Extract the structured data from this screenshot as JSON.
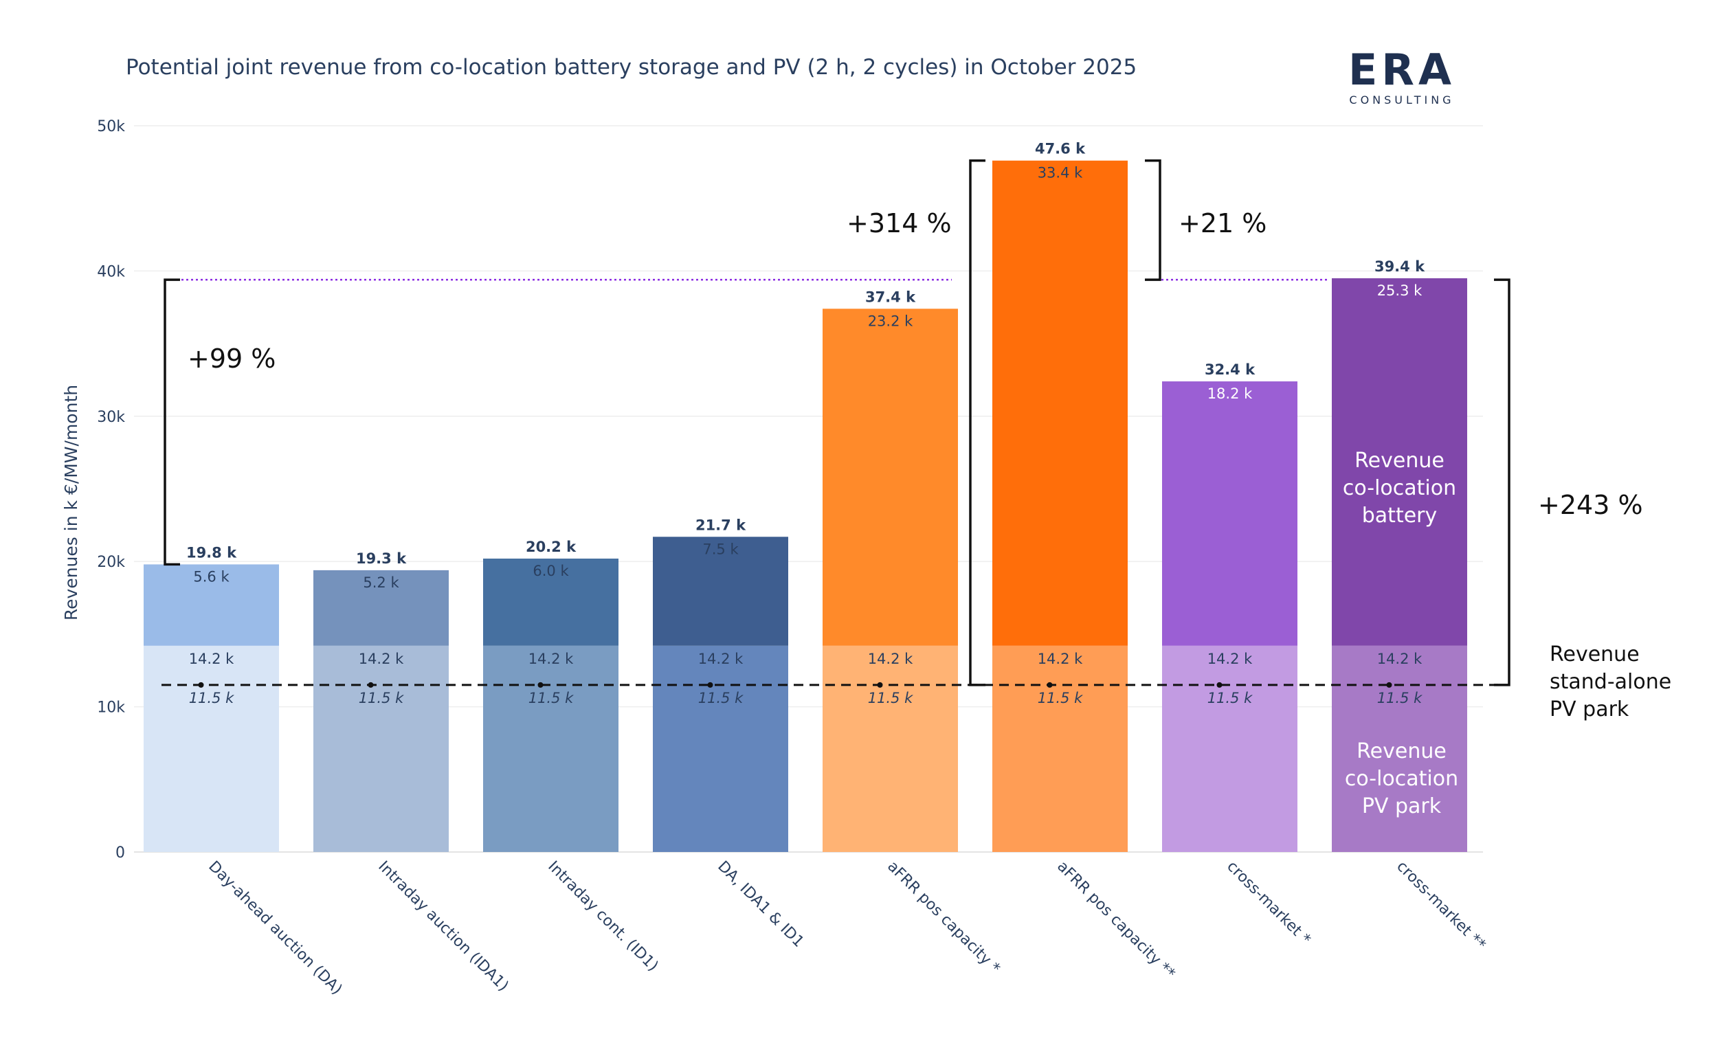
{
  "title": "Potential joint revenue from co-location battery storage and PV (2 h, 2 cycles) in October 2025",
  "logo": {
    "main": "ERA",
    "sub": "CONSULTING"
  },
  "chart_data": {
    "type": "bar",
    "stacked": true,
    "ylabel": "Revenues in k €/MW/month",
    "xlabel": "",
    "ylim": [
      0,
      50000
    ],
    "yticks": [
      {
        "value": 0,
        "label": "0"
      },
      {
        "value": 10000,
        "label": "10k"
      },
      {
        "value": 20000,
        "label": "20k"
      },
      {
        "value": 30000,
        "label": "30k"
      },
      {
        "value": 40000,
        "label": "40k"
      },
      {
        "value": 50000,
        "label": "50k"
      }
    ],
    "categories": [
      "Day-ahead auction (DA)",
      "Intraday auction (IDA1)",
      "Intraday cont. (ID1)",
      "DA, IDA1 & ID1",
      "aFRR pos capacity *",
      "aFRR pos capacity **",
      "cross-market *",
      "cross-market **"
    ],
    "series": [
      {
        "name": "Revenue co-location PV park",
        "values": [
          14200,
          14200,
          14200,
          14200,
          14200,
          14200,
          14200,
          14200
        ],
        "labels": [
          "14.2 k",
          "14.2 k",
          "14.2 k",
          "14.2 k",
          "14.2 k",
          "14.2 k",
          "14.2 k",
          "14.2 k"
        ],
        "colors": [
          "#d8e5f6",
          "#a8bcd8",
          "#7a9cc2",
          "#6486bc",
          "#ffb374",
          "#ff9d55",
          "#c29be2",
          "#a77ac6"
        ]
      },
      {
        "name": "Revenue co-location battery",
        "values": [
          5600,
          5200,
          6000,
          7500,
          23200,
          33400,
          18200,
          25300
        ],
        "labels": [
          "5.6 k",
          "5.2 k",
          "6.0 k",
          "7.5 k",
          "23.2 k",
          "33.4 k",
          "18.2 k",
          "25.3 k"
        ],
        "colors": [
          "#9abbe8",
          "#7592bc",
          "#4670a0",
          "#3e5e90",
          "#ff8a2a",
          "#ff6e0a",
          "#9b5fd4",
          "#8047aa"
        ]
      }
    ],
    "totals": [
      19800,
      19300,
      20200,
      21700,
      37400,
      47600,
      32400,
      39400
    ],
    "total_labels": [
      "19.8 k",
      "19.3 k",
      "20.2 k",
      "21.7 k",
      "37.4 k",
      "47.6 k",
      "32.4 k",
      "39.4 k"
    ],
    "standalone_pv": {
      "value": 11500,
      "label": "11.5 k",
      "legend": [
        "Revenue",
        "stand-alone",
        "PV park"
      ]
    },
    "segment_annotations": {
      "battery": [
        "Revenue",
        "co-location",
        "battery"
      ],
      "pv": [
        "Revenue",
        "co-location",
        "PV park"
      ]
    },
    "reference_line": {
      "value": 39400,
      "color": "#8a2be2"
    },
    "brackets": [
      {
        "label": "+99 %",
        "from": 19800,
        "to": 39400
      },
      {
        "label": "+314 %",
        "from": 11500,
        "to": 47600
      },
      {
        "label": "+21 %",
        "from": 39400,
        "to": 47600
      },
      {
        "label": "+243 %",
        "from": 11500,
        "to": 39400
      }
    ],
    "colors": {
      "title": "#2a3f5f",
      "axis_text": "#2a3f5f",
      "grid": "#eeeeee",
      "bracket": "#111111",
      "dark_label": "#2a3f5f",
      "light_label": "#ffffff"
    }
  }
}
